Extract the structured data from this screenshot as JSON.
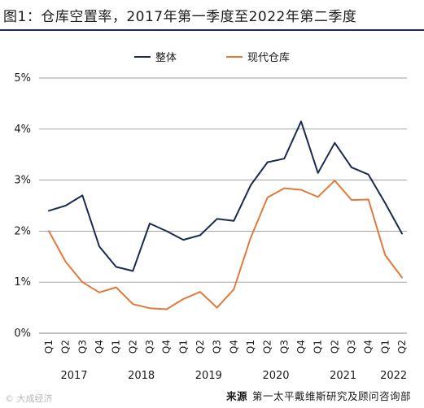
{
  "title": "图1：仓库空置率，2017年第一季度至2022年第二季度",
  "source": {
    "prefix": "来源",
    "text": "第一太平戴维斯研究及顾问咨询部"
  },
  "watermark": "© 大成经济",
  "colors": {
    "overall": "#1c2a4d",
    "modern": "#e07a3c",
    "grid": "#9a9a9a",
    "text": "#1a1a1a",
    "title_rule": "#1c2a4d"
  },
  "chart_data": {
    "type": "line",
    "title": "仓库空置率",
    "ylim": [
      0,
      5
    ],
    "yticks": [
      0,
      1,
      2,
      3,
      4,
      5
    ],
    "ytick_labels": [
      "0%",
      "1%",
      "2%",
      "3%",
      "4%",
      "5%"
    ],
    "grid": true,
    "legend": "top-center",
    "categories": [
      "Q1",
      "Q2",
      "Q3",
      "Q4",
      "Q1",
      "Q2",
      "Q3",
      "Q4",
      "Q1",
      "Q2",
      "Q3",
      "Q4",
      "Q1",
      "Q2",
      "Q3",
      "Q4",
      "Q1",
      "Q2",
      "Q3",
      "Q4",
      "Q1",
      "Q2"
    ],
    "years": [
      {
        "label": "2017",
        "start": 0,
        "end": 3
      },
      {
        "label": "2018",
        "start": 4,
        "end": 7
      },
      {
        "label": "2019",
        "start": 8,
        "end": 11
      },
      {
        "label": "2020",
        "start": 12,
        "end": 15
      },
      {
        "label": "2021",
        "start": 16,
        "end": 19
      },
      {
        "label": "2022",
        "start": 20,
        "end": 21
      }
    ],
    "series": [
      {
        "name": "整体",
        "color": "#1c2a4d",
        "values": [
          2.4,
          2.5,
          2.7,
          1.7,
          1.3,
          1.22,
          2.15,
          2.0,
          1.83,
          1.92,
          2.24,
          2.2,
          2.9,
          3.35,
          3.42,
          4.15,
          3.14,
          3.73,
          3.25,
          3.11,
          2.55,
          1.95
        ]
      },
      {
        "name": "现代仓库",
        "color": "#e07a3c",
        "values": [
          2.0,
          1.4,
          1.0,
          0.8,
          0.9,
          0.57,
          0.49,
          0.47,
          0.67,
          0.81,
          0.5,
          0.86,
          1.87,
          2.66,
          2.84,
          2.81,
          2.67,
          2.99,
          2.61,
          2.62,
          1.53,
          1.09
        ]
      }
    ]
  }
}
